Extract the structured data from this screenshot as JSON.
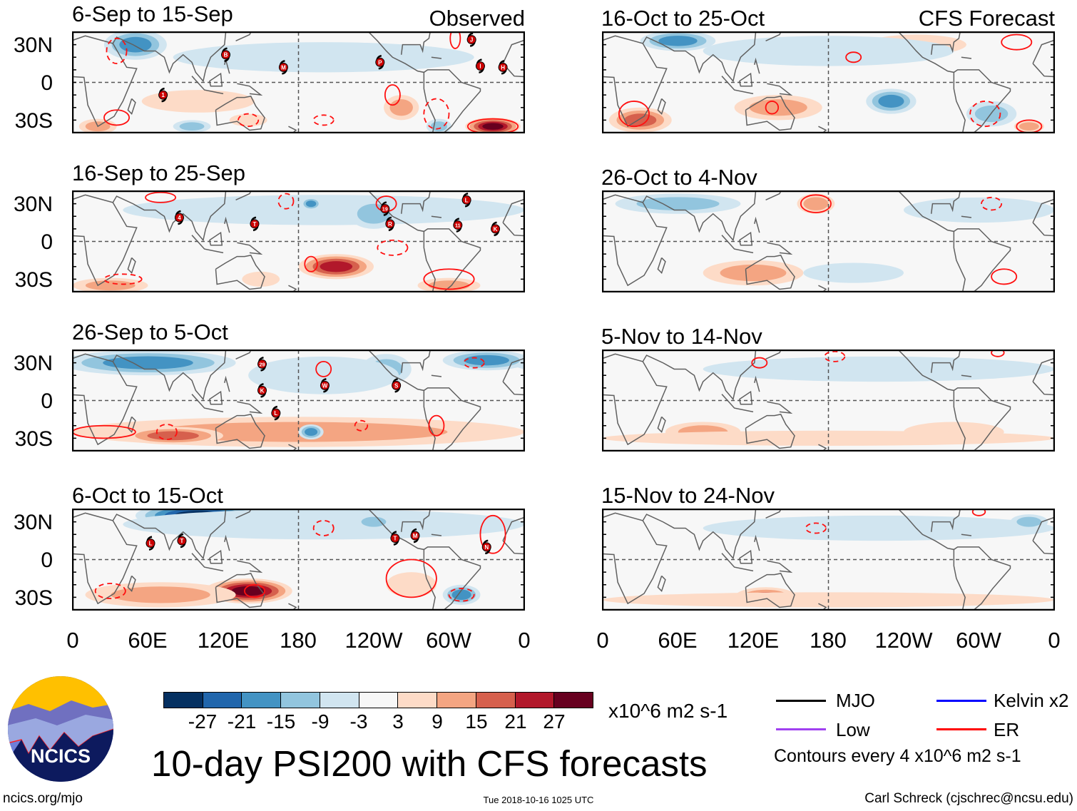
{
  "header": {
    "observed_label": "Observed",
    "forecast_label": "CFS Forecast"
  },
  "axes": {
    "lat_labels": [
      "30N",
      "0",
      "30S"
    ],
    "lon_labels": [
      "0",
      "60E",
      "120E",
      "180",
      "120W",
      "60W",
      "0"
    ]
  },
  "colorbar": {
    "colors": [
      "#053061",
      "#2166ac",
      "#4393c3",
      "#92c5de",
      "#d1e5f0",
      "#f7f7f7",
      "#fddbc7",
      "#f4a582",
      "#d6604d",
      "#b2182b",
      "#67001f"
    ],
    "ticks": [
      "-27",
      "-21",
      "-15",
      "-9",
      "-3",
      "3",
      "9",
      "15",
      "21",
      "27"
    ],
    "units": "x10^6 m2 s-1"
  },
  "legend": {
    "items": [
      {
        "label": "MJO",
        "color": "#000000"
      },
      {
        "label": "Kelvin x2",
        "color": "#0000ff"
      },
      {
        "label": "Low",
        "color": "#a040f0"
      },
      {
        "label": "ER",
        "color": "#ff0000"
      }
    ],
    "contour_note": "Contours every 4 x10^6 m2 s-1"
  },
  "logo": {
    "text": "NCICS"
  },
  "title": "10-day PSI200 with CFS forecasts",
  "footer": {
    "url": "ncics.org/mjo",
    "timestamp": "Tue 2018-10-16 1025 UTC",
    "author": "Carl Schreck (cjschrec@ncsu.edu)"
  },
  "chart_data": {
    "type": "map",
    "variable": "200-hPa streamfunction anomaly",
    "units": "x10^6 m2 s-1",
    "lon_range": [
      0,
      360
    ],
    "lat_range": [
      -40,
      40
    ],
    "panels": [
      {
        "title": "6-Sep to 15-Sep",
        "kind": "observed",
        "anomalies": [
          [
            50,
            30,
            25,
            12,
            -15
          ],
          [
            200,
            20,
            120,
            12,
            -6
          ],
          [
            100,
            -15,
            45,
            9,
            6
          ],
          [
            335,
            -35,
            22,
            7,
            27
          ],
          [
            262,
            -20,
            14,
            10,
            12
          ],
          [
            292,
            -35,
            10,
            6,
            -9
          ],
          [
            95,
            -35,
            15,
            5,
            -9
          ],
          [
            20,
            -35,
            15,
            6,
            12
          ],
          [
            140,
            -30,
            15,
            5,
            6
          ]
        ],
        "contours": [
          [
            335,
            -35,
            20,
            6,
            0
          ],
          [
            255,
            -10,
            6,
            8,
            0
          ],
          [
            290,
            -25,
            10,
            12,
            1
          ],
          [
            200,
            -30,
            8,
            4,
            1
          ],
          [
            35,
            -28,
            10,
            6,
            0
          ],
          [
            140,
            -30,
            8,
            5,
            1
          ],
          [
            305,
            35,
            4,
            8,
            0
          ],
          [
            35,
            25,
            8,
            10,
            1
          ]
        ],
        "storms": [
          [
            "B",
            122,
            22
          ],
          [
            "M",
            168,
            12
          ],
          [
            "1",
            72,
            -10
          ],
          [
            "P",
            245,
            16
          ],
          [
            "J",
            318,
            34
          ],
          [
            "I",
            325,
            13
          ],
          [
            "H",
            343,
            12
          ]
        ]
      },
      {
        "title": "16-Sep to 25-Sep",
        "kind": "observed",
        "anomalies": [
          [
            200,
            25,
            160,
            12,
            -6
          ],
          [
            240,
            22,
            20,
            12,
            -12
          ],
          [
            190,
            30,
            8,
            5,
            -15
          ],
          [
            210,
            -20,
            30,
            10,
            24
          ],
          [
            30,
            -35,
            30,
            6,
            12
          ],
          [
            300,
            -35,
            25,
            6,
            12
          ],
          [
            150,
            -30,
            15,
            6,
            6
          ]
        ],
        "contours": [
          [
            300,
            -30,
            20,
            8,
            0
          ],
          [
            190,
            -18,
            5,
            6,
            0
          ],
          [
            255,
            -5,
            12,
            6,
            1
          ],
          [
            40,
            -30,
            15,
            4,
            1
          ],
          [
            250,
            30,
            8,
            6,
            0
          ],
          [
            70,
            35,
            12,
            4,
            0
          ],
          [
            170,
            32,
            6,
            6,
            1
          ]
        ],
        "storms": [
          [
            "4",
            85,
            19
          ],
          [
            "T",
            145,
            14
          ],
          [
            "19",
            249,
            26
          ],
          [
            "R",
            253,
            14
          ],
          [
            "L",
            314,
            33
          ],
          [
            "11",
            307,
            13
          ],
          [
            "K",
            337,
            10
          ]
        ]
      },
      {
        "title": "26-Sep to 5-Oct",
        "kind": "observed",
        "anomalies": [
          [
            60,
            30,
            70,
            10,
            -18
          ],
          [
            330,
            32,
            35,
            8,
            -18
          ],
          [
            250,
            25,
            20,
            12,
            -12
          ],
          [
            180,
            -25,
            180,
            12,
            12
          ],
          [
            80,
            -28,
            40,
            7,
            15
          ],
          [
            190,
            -25,
            10,
            6,
            -15
          ],
          [
            200,
            20,
            60,
            15,
            -6
          ]
        ],
        "contours": [
          [
            25,
            -25,
            25,
            5,
            0
          ],
          [
            200,
            25,
            6,
            6,
            0
          ],
          [
            230,
            -20,
            5,
            4,
            1
          ],
          [
            290,
            -20,
            6,
            8,
            0
          ],
          [
            75,
            -25,
            8,
            6,
            1
          ],
          [
            320,
            30,
            8,
            4,
            1
          ]
        ],
        "storms": [
          [
            "29",
            151,
            29
          ],
          [
            "K",
            151,
            8
          ],
          [
            "L",
            162,
            -10
          ],
          [
            "W",
            201,
            12
          ],
          [
            "S",
            258,
            12
          ]
        ]
      },
      {
        "title": "6-Oct to 15-Oct",
        "kind": "observed",
        "anomalies": [
          [
            100,
            35,
            50,
            10,
            -27
          ],
          [
            200,
            28,
            160,
            12,
            -6
          ],
          [
            240,
            30,
            15,
            6,
            -12
          ],
          [
            140,
            -25,
            35,
            10,
            27
          ],
          [
            70,
            -28,
            60,
            10,
            12
          ],
          [
            310,
            -28,
            15,
            8,
            -15
          ],
          [
            270,
            -20,
            20,
            10,
            6
          ]
        ],
        "contours": [
          [
            145,
            -25,
            8,
            5,
            0
          ],
          [
            270,
            -15,
            20,
            15,
            0
          ],
          [
            30,
            -25,
            12,
            6,
            1
          ],
          [
            335,
            20,
            10,
            15,
            0
          ],
          [
            200,
            25,
            8,
            6,
            1
          ],
          [
            310,
            -28,
            10,
            5,
            1
          ]
        ],
        "storms": [
          [
            "L",
            62,
            13
          ],
          [
            "T",
            87,
            15
          ],
          [
            "T",
            257,
            17
          ],
          [
            "M",
            273,
            19
          ],
          [
            "N",
            330,
            10
          ]
        ]
      },
      {
        "title": "16-Oct to 25-Oct",
        "kind": "forecast",
        "anomalies": [
          [
            60,
            33,
            30,
            8,
            -15
          ],
          [
            30,
            -30,
            25,
            10,
            15
          ],
          [
            230,
            -15,
            20,
            10,
            -15
          ],
          [
            310,
            -25,
            20,
            10,
            -12
          ],
          [
            340,
            -35,
            12,
            5,
            12
          ],
          [
            140,
            -20,
            35,
            10,
            9
          ],
          [
            250,
            30,
            40,
            8,
            6
          ],
          [
            180,
            25,
            100,
            12,
            -3
          ]
        ],
        "contours": [
          [
            25,
            -25,
            12,
            10,
            0
          ],
          [
            305,
            -25,
            12,
            10,
            1
          ],
          [
            330,
            32,
            12,
            6,
            0
          ],
          [
            340,
            -35,
            10,
            5,
            0
          ],
          [
            200,
            20,
            6,
            4,
            0
          ],
          [
            135,
            -20,
            5,
            5,
            0
          ]
        ],
        "storms": []
      },
      {
        "title": "26-Oct to 4-Nov",
        "kind": "forecast",
        "anomalies": [
          [
            60,
            30,
            50,
            8,
            -12
          ],
          [
            170,
            30,
            15,
            8,
            12
          ],
          [
            120,
            -25,
            40,
            10,
            9
          ],
          [
            200,
            -25,
            40,
            8,
            -6
          ],
          [
            300,
            25,
            60,
            10,
            -3
          ]
        ],
        "contours": [
          [
            170,
            30,
            12,
            7,
            0
          ],
          [
            310,
            30,
            8,
            5,
            1
          ],
          [
            320,
            -28,
            10,
            6,
            0
          ]
        ],
        "storms": []
      },
      {
        "title": "5-Nov to 14-Nov",
        "kind": "forecast",
        "anomalies": [
          [
            220,
            25,
            140,
            10,
            -6
          ],
          [
            80,
            -25,
            30,
            8,
            9
          ],
          [
            280,
            -25,
            40,
            8,
            6
          ],
          [
            180,
            -30,
            180,
            6,
            3
          ]
        ],
        "contours": [
          [
            125,
            30,
            6,
            4,
            0
          ],
          [
            185,
            35,
            8,
            4,
            1
          ],
          [
            315,
            38,
            5,
            3,
            0
          ]
        ],
        "storms": []
      },
      {
        "title": "15-Nov to 24-Nov",
        "kind": "forecast",
        "anomalies": [
          [
            220,
            25,
            140,
            10,
            -6
          ],
          [
            340,
            30,
            15,
            6,
            -9
          ],
          [
            130,
            -30,
            25,
            8,
            15
          ],
          [
            180,
            -32,
            180,
            6,
            6
          ]
        ],
        "contours": [
          [
            170,
            25,
            8,
            4,
            1
          ],
          [
            300,
            38,
            5,
            3,
            0
          ]
        ],
        "storms": []
      }
    ]
  }
}
